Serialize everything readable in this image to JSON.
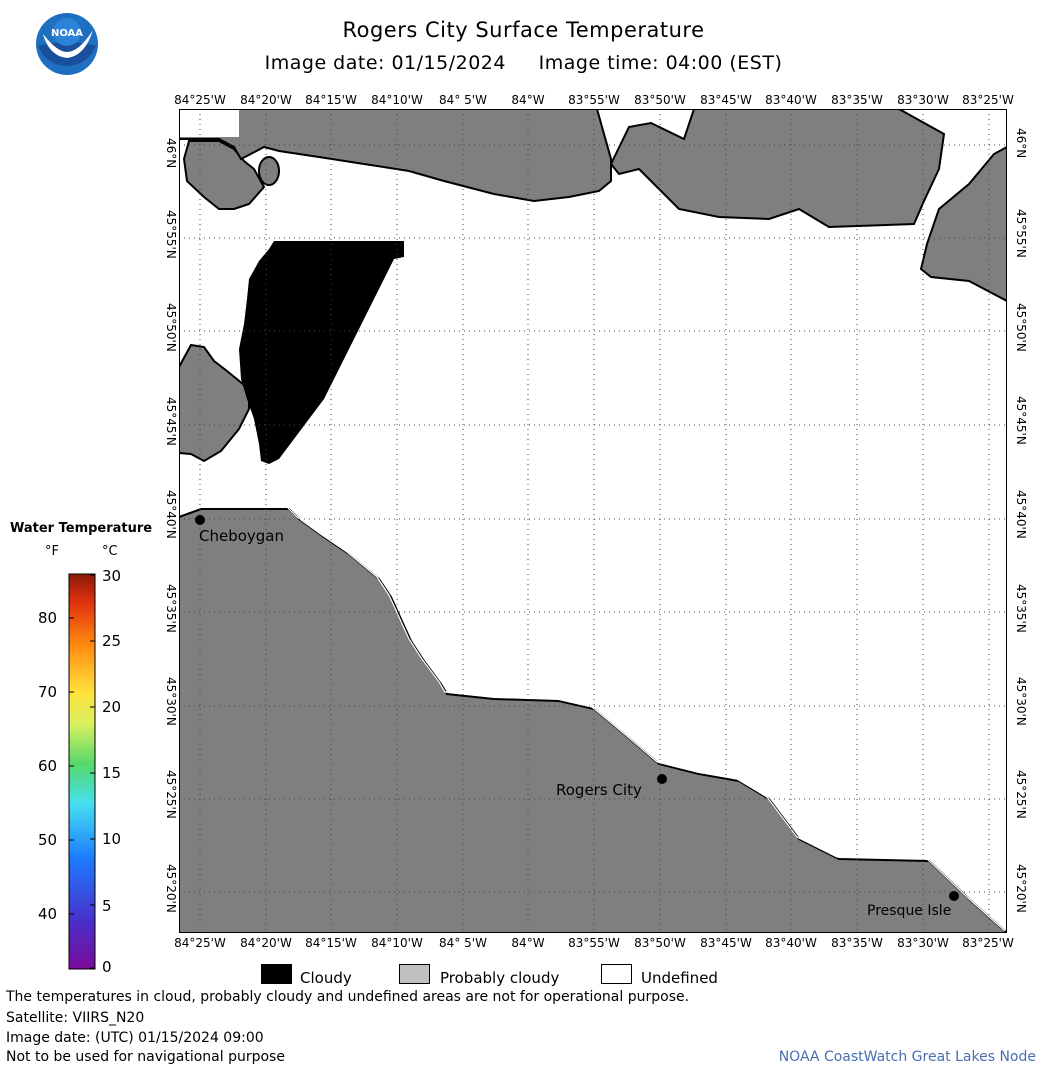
{
  "header": {
    "title": "Rogers City Surface Temperature",
    "subtitle": "Image date: 01/15/2024     Image time: 04:00 (EST)"
  },
  "map": {
    "lon_labels": [
      "84°25'W",
      "84°20'W",
      "84°15'W",
      "84°10'W",
      "84° 5'W",
      "84°W",
      "83°55'W",
      "83°50'W",
      "83°45'W",
      "83°40'W",
      "83°35'W",
      "83°30'W",
      "83°25'W"
    ],
    "lat_labels": [
      "46°N",
      "45°55'N",
      "45°50'N",
      "45°45'N",
      "45°40'N",
      "45°35'N",
      "45°30'N",
      "45°25'N",
      "45°20'N"
    ],
    "places": [
      {
        "name": "Cheboygan"
      },
      {
        "name": "Rogers City"
      },
      {
        "name": "Presque Isle"
      }
    ],
    "colors": {
      "land": "#7f7f7f",
      "cloudy": "#000000",
      "probably_cloudy": "#c0c0c0",
      "undefined": "#ffffff",
      "grid": "#555555"
    }
  },
  "legend": {
    "title": "Water Temperature",
    "unit_f": "°F",
    "unit_c": "°C",
    "f_ticks": [
      "80",
      "70",
      "60",
      "50",
      "40"
    ],
    "c_ticks": [
      "30",
      "25",
      "20",
      "15",
      "10",
      "5",
      "0"
    ]
  },
  "key": {
    "cloudy": "Cloudy",
    "probably_cloudy": "Probably cloudy",
    "undefined": "Undefined"
  },
  "footer": {
    "note1": "The temperatures in cloud, probably cloudy and undefined areas are not for operational purpose.",
    "note2": "Satellite: VIIRS_N20",
    "note3": "Image date: (UTC) 01/15/2024  09:00",
    "note4": "Not to be used for navigational purpose",
    "credit": "NOAA CoastWatch Great Lakes Node"
  }
}
